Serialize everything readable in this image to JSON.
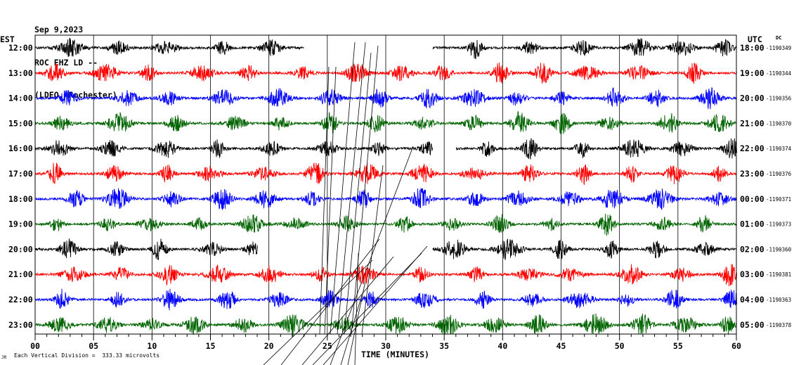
{
  "header": {
    "date": "Sep 9,2023",
    "station": "ROC EHZ LD --",
    "network": "(LDEO, Rochester)"
  },
  "chart_data": {
    "type": "line",
    "title": "",
    "xlabel": "TIME (MINUTES)",
    "left_timezone": "EST",
    "right_timezone": "UTC",
    "dc_label": "DC",
    "scale_note": "Each Vertical Division =  333.33 microvolts",
    "xlim": [
      0,
      60
    ],
    "x_ticks": [
      "00",
      "05",
      "10",
      "15",
      "20",
      "25",
      "30",
      "35",
      "40",
      "45",
      "50",
      "55",
      "60"
    ],
    "grid_minutes": [
      0,
      5,
      10,
      15,
      20,
      25,
      30,
      35,
      40,
      45,
      50,
      55,
      60
    ],
    "trace_colors": [
      "#000000",
      "#ff0000",
      "#0000ff",
      "#006400"
    ],
    "rows": [
      {
        "est": "12:00",
        "utc": "18:00",
        "dc": "-1190349",
        "color": "#000000"
      },
      {
        "est": "13:00",
        "utc": "19:00",
        "dc": "-1190344",
        "color": "#ff0000"
      },
      {
        "est": "14:00",
        "utc": "20:00",
        "dc": "-1190356",
        "color": "#0000ff"
      },
      {
        "est": "15:00",
        "utc": "21:00",
        "dc": "-1190370",
        "color": "#006400"
      },
      {
        "est": "16:00",
        "utc": "22:00",
        "dc": "-1190374",
        "color": "#000000"
      },
      {
        "est": "17:00",
        "utc": "23:00",
        "dc": "-1190376",
        "color": "#ff0000"
      },
      {
        "est": "18:00",
        "utc": "00:00",
        "dc": "-1190371",
        "color": "#0000ff"
      },
      {
        "est": "19:00",
        "utc": "01:00",
        "dc": "-1190373",
        "color": "#006400"
      },
      {
        "est": "20:00",
        "utc": "02:00",
        "dc": "-1190360",
        "color": "#000000"
      },
      {
        "est": "21:00",
        "utc": "03:00",
        "dc": "-1190381",
        "color": "#ff0000"
      },
      {
        "est": "22:00",
        "utc": "04:00",
        "dc": "-1190363",
        "color": "#0000ff"
      },
      {
        "est": "23:00",
        "utc": "05:00",
        "dc": "-1190378",
        "color": "#006400"
      }
    ],
    "gaps": [
      {
        "row": 0,
        "start": 23,
        "end": 34
      },
      {
        "row": 4,
        "start": 34,
        "end": 36
      },
      {
        "row": 8,
        "start": 19,
        "end": 34
      }
    ]
  }
}
